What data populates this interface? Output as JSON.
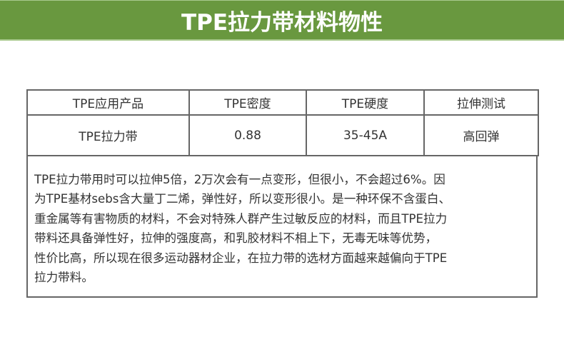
{
  "header": {
    "title": "TPE拉力带材料物性",
    "background": "#69983f"
  },
  "table": {
    "columns": [
      "TPE应用产品",
      "TPE密度",
      "TPE硬度",
      "拉伸测试"
    ],
    "rows": [
      [
        "TPE拉力带",
        "0.88",
        "35-45A",
        "高回弹"
      ]
    ]
  },
  "description": {
    "lines": [
      "TPE拉力带用时可以拉伸5倍，2万次会有一点变形，但很小，不会超过6%。因",
      "为TPE基材sebs含大量丁二烯，弹性好，所以变形很小。是一种环保不含蛋白、",
      "重金属等有害物质的材料，不会对特殊人群产生过敏反应的材料，而且TPE拉力",
      "带料还具备弹性好，拉伸的强度高，和乳胶材料不相上下，无毒无味等优势，",
      "性价比高，所以现在很多运动器材企业，在拉力带的选材方面越来越偏向于TPE",
      "拉力带料。"
    ]
  }
}
